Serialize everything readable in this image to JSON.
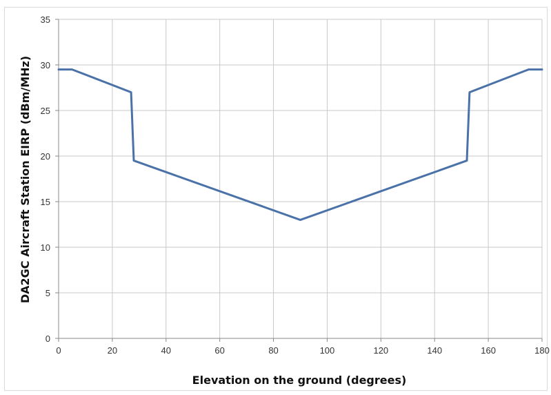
{
  "chart_data": {
    "type": "line",
    "title": "",
    "xlabel": "Elevation on the ground (degrees)",
    "ylabel": "DA2GC  Aircraft  Station  EIRP (dBm/MHz)",
    "xlim": [
      0,
      180
    ],
    "ylim": [
      0,
      35
    ],
    "xticks": [
      0,
      20,
      40,
      60,
      80,
      100,
      120,
      140,
      160,
      180
    ],
    "yticks": [
      0,
      5,
      10,
      15,
      20,
      25,
      30,
      35
    ],
    "grid": true,
    "legend": "none",
    "series": [
      {
        "color": "#4a72a8",
        "x": [
          0,
          5,
          27,
          28,
          90,
          152,
          153,
          175,
          180
        ],
        "y": [
          29.5,
          29.5,
          27,
          19.5,
          13,
          19.5,
          27,
          29.5,
          29.5
        ]
      }
    ]
  }
}
